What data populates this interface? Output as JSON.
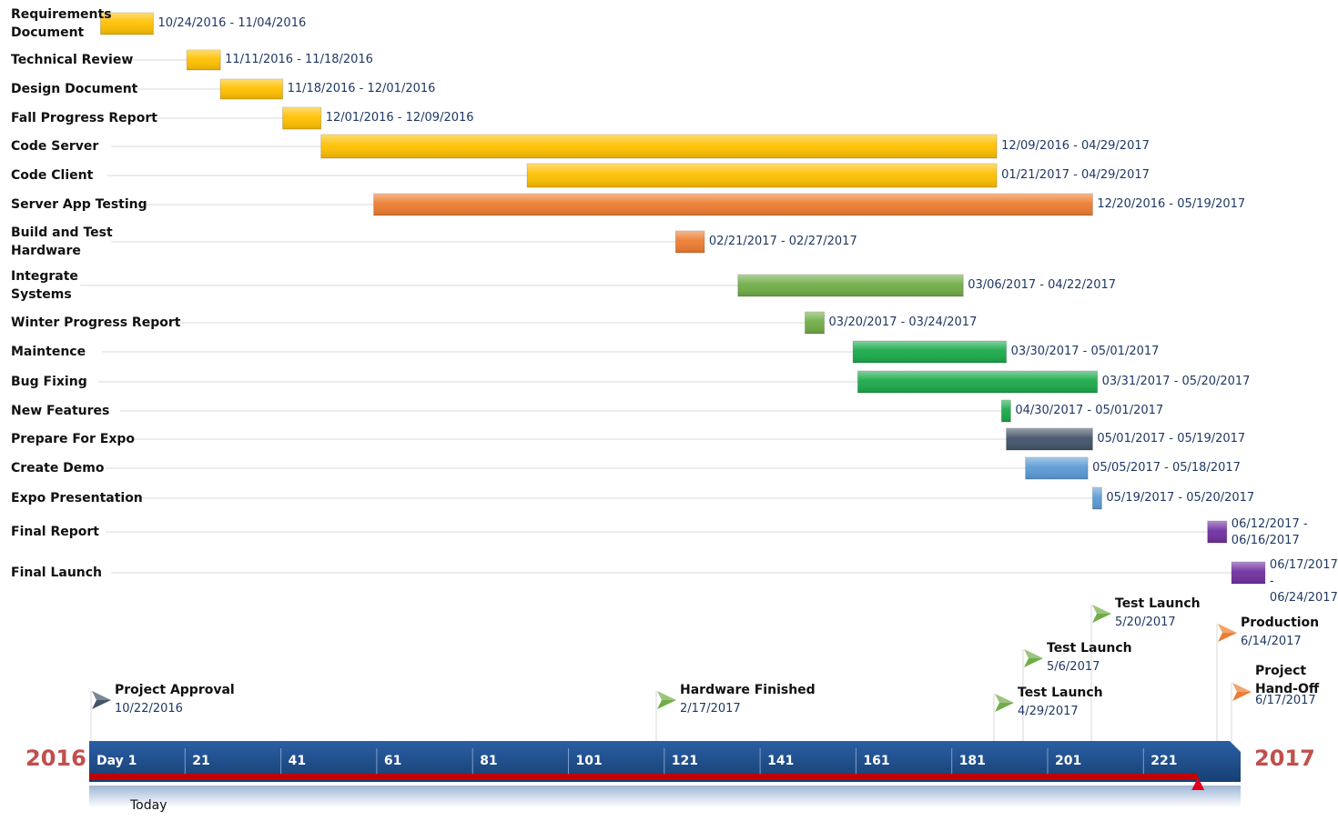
{
  "chart_data": {
    "type": "gantt",
    "tasks": [
      {
        "label": "Requirements\nDocument",
        "dates": "10/24/2016 - 11/04/2016",
        "start": "2016-10-24",
        "end": "2016-11-04",
        "color": "#ffc000"
      },
      {
        "label": "Technical Review",
        "dates": "11/11/2016 - 11/18/2016",
        "start": "2016-11-11",
        "end": "2016-11-18",
        "color": "#ffc000"
      },
      {
        "label": "Design Document",
        "dates": "11/18/2016 - 12/01/2016",
        "start": "2016-11-18",
        "end": "2016-12-01",
        "color": "#ffc000"
      },
      {
        "label": "Fall Progress Report",
        "dates": "12/01/2016 - 12/09/2016",
        "start": "2016-12-01",
        "end": "2016-12-09",
        "color": "#ffc000"
      },
      {
        "label": "Code Server",
        "dates": "12/09/2016 - 04/29/2017",
        "start": "2016-12-09",
        "end": "2017-04-29",
        "color": "#ffc000"
      },
      {
        "label": "Code Client",
        "dates": "01/21/2017 - 04/29/2017",
        "start": "2017-01-21",
        "end": "2017-04-29",
        "color": "#ffc000"
      },
      {
        "label": "Server App Testing",
        "dates": "12/20/2016 - 05/19/2017",
        "start": "2016-12-20",
        "end": "2017-05-19",
        "color": "#ed7d31"
      },
      {
        "label": "Build and Test\nHardware",
        "dates": "02/21/2017 - 02/27/2017",
        "start": "2017-02-21",
        "end": "2017-02-27",
        "color": "#ed7d31"
      },
      {
        "label": "Integrate\nSystems",
        "dates": "03/06/2017 - 04/22/2017",
        "start": "2017-03-06",
        "end": "2017-04-22",
        "color": "#70ad47"
      },
      {
        "label": "Winter Progress Report",
        "dates": "03/20/2017 - 03/24/2017",
        "start": "2017-03-20",
        "end": "2017-03-24",
        "color": "#70ad47"
      },
      {
        "label": "Maintence",
        "dates": "03/30/2017 - 05/01/2017",
        "start": "2017-03-30",
        "end": "2017-05-01",
        "color": "#1aaa4a"
      },
      {
        "label": "Bug Fixing",
        "dates": "03/31/2017 - 05/20/2017",
        "start": "2017-03-31",
        "end": "2017-05-20",
        "color": "#1aaa4a"
      },
      {
        "label": "New Features",
        "dates": "04/30/2017 - 05/01/2017",
        "start": "2017-04-30",
        "end": "2017-05-01",
        "color": "#1aaa4a"
      },
      {
        "label": "Prepare For Expo",
        "dates": "05/01/2017 - 05/19/2017",
        "start": "2017-05-01",
        "end": "2017-05-19",
        "color": "#44546a"
      },
      {
        "label": "Create Demo",
        "dates": "05/05/2017 - 05/18/2017",
        "start": "2017-05-05",
        "end": "2017-05-18",
        "color": "#5b9bd5"
      },
      {
        "label": "Expo Presentation",
        "dates": "05/19/2017 - 05/20/2017",
        "start": "2017-05-19",
        "end": "2017-05-20",
        "color": "#5b9bd5"
      },
      {
        "label": "Final Report",
        "dates": "06/12/2017 -\n06/16/2017",
        "start": "2017-06-12",
        "end": "2017-06-16",
        "color": "#7030a0"
      },
      {
        "label": "Final Launch",
        "dates": "06/17/2017 -\n06/24/2017",
        "start": "2017-06-17",
        "end": "2017-06-24",
        "color": "#7030a0"
      }
    ],
    "milestones": [
      {
        "title": "Project Approval",
        "date": "10/22/2016",
        "color": "#44546a"
      },
      {
        "title": "Hardware Finished",
        "date": "2/17/2017",
        "color": "#70ad47"
      },
      {
        "title": "Test Launch",
        "date": "4/29/2017",
        "color": "#70ad47"
      },
      {
        "title": "Test Launch",
        "date": "5/6/2017",
        "color": "#70ad47"
      },
      {
        "title": "Test Launch",
        "date": "5/20/2017",
        "color": "#70ad47"
      },
      {
        "title": "Production",
        "date": "6/14/2017",
        "color": "#ed7d31"
      },
      {
        "title": "Project\nHand-Off",
        "date": "6/17/2017",
        "color": "#ed7d31"
      }
    ],
    "timeline": {
      "start_year": "2016",
      "end_year": "2017",
      "ticks": [
        "Day 1",
        "21",
        "41",
        "61",
        "81",
        "101",
        "121",
        "141",
        "161",
        "181",
        "201",
        "221"
      ],
      "today_label": "Today",
      "today_date": "2017-06-10",
      "bar_color": "#1f4e8c",
      "progress_color": "#c00000"
    }
  }
}
